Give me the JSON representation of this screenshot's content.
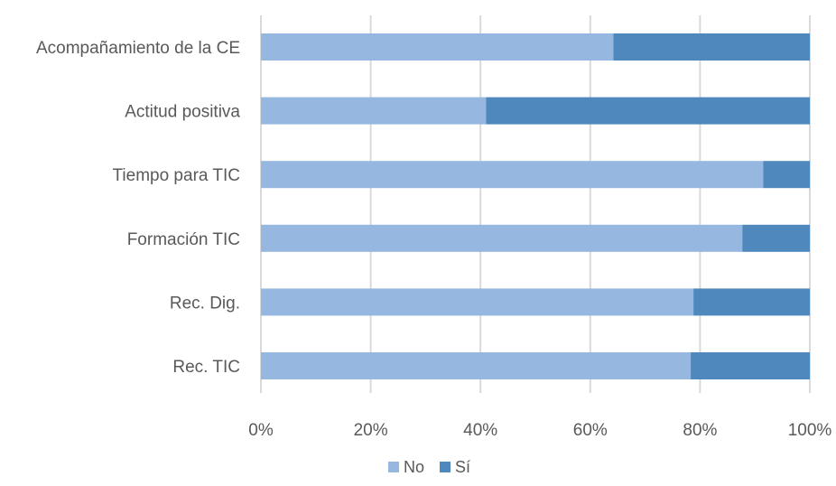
{
  "chart_data": {
    "type": "bar",
    "orientation": "horizontal",
    "stacked": "percent",
    "categories": [
      "Acompañamiento de la CE",
      "Actitud positiva",
      "Tiempo para TIC",
      "Formación TIC",
      "Rec. Dig.",
      "Rec. TIC"
    ],
    "series": [
      {
        "name": "No",
        "color": "#95b7e0",
        "values": [
          64.2,
          41.0,
          91.5,
          87.7,
          78.8,
          78.3
        ]
      },
      {
        "name": "Sí",
        "color": "#4f88bd",
        "values": [
          35.8,
          59.0,
          8.5,
          12.3,
          21.2,
          21.7
        ]
      }
    ],
    "xlim": [
      0,
      100
    ],
    "x_ticks": [
      "0%",
      "20%",
      "40%",
      "60%",
      "80%",
      "100%"
    ],
    "grid": "vertical",
    "legend_position": "bottom",
    "title": "",
    "xlabel": "",
    "ylabel": ""
  }
}
